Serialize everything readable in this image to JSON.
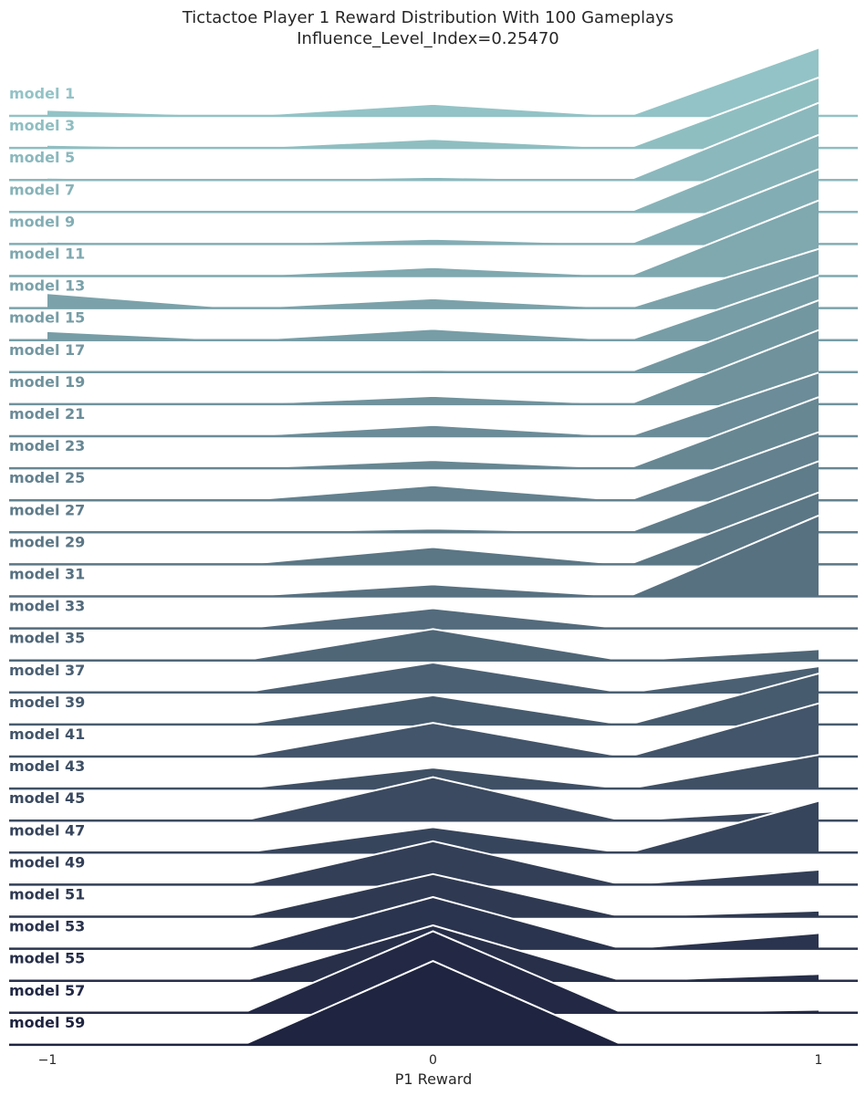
{
  "chart_data": {
    "type": "area",
    "title": "Tictactoe Player 1 Reward Distribution With 100 Gameplays",
    "subtitle": "Influence_Level_Index=0.25470",
    "xlabel": "P1 Reward",
    "x_ticks": [
      "−1",
      "0",
      "1"
    ],
    "x": [
      -1,
      0,
      1
    ],
    "xlim": [
      -1,
      1
    ],
    "series": [
      {
        "name": "model 1",
        "values": [
          8,
          16,
          91
        ]
      },
      {
        "name": "model 3",
        "values": [
          4,
          12,
          94
        ]
      },
      {
        "name": "model 5",
        "values": [
          3,
          4,
          103
        ]
      },
      {
        "name": "model 7",
        "values": [
          1,
          2,
          103
        ]
      },
      {
        "name": "model 9",
        "values": [
          3,
          7,
          100
        ]
      },
      {
        "name": "model 11",
        "values": [
          1,
          12,
          101
        ]
      },
      {
        "name": "model 13",
        "values": [
          20,
          13,
          79
        ]
      },
      {
        "name": "model 15",
        "values": [
          12,
          15,
          87
        ]
      },
      {
        "name": "model 17",
        "values": [
          1,
          3,
          96
        ]
      },
      {
        "name": "model 19",
        "values": [
          1,
          11,
          99
        ]
      },
      {
        "name": "model 21",
        "values": [
          1,
          15,
          85
        ]
      },
      {
        "name": "model 23",
        "values": [
          1,
          11,
          95
        ]
      },
      {
        "name": "model 25",
        "values": [
          1,
          20,
          91
        ]
      },
      {
        "name": "model 27",
        "values": [
          1,
          5,
          95
        ]
      },
      {
        "name": "model 29",
        "values": [
          1,
          23,
          96
        ]
      },
      {
        "name": "model 31",
        "values": [
          1,
          16,
          108
        ]
      },
      {
        "name": "model 33",
        "values": [
          1,
          27,
          0
        ]
      },
      {
        "name": "model 35",
        "values": [
          0,
          42,
          15
        ]
      },
      {
        "name": "model 37",
        "values": [
          0,
          40,
          35
        ]
      },
      {
        "name": "model 39",
        "values": [
          2,
          39,
          68
        ]
      },
      {
        "name": "model 41",
        "values": [
          1,
          45,
          71
        ]
      },
      {
        "name": "model 43",
        "values": [
          1,
          28,
          45
        ]
      },
      {
        "name": "model 45",
        "values": [
          1,
          58,
          16
        ]
      },
      {
        "name": "model 47",
        "values": [
          1,
          34,
          69
        ]
      },
      {
        "name": "model 49",
        "values": [
          1,
          58,
          20
        ]
      },
      {
        "name": "model 51",
        "values": [
          1,
          57,
          8
        ]
      },
      {
        "name": "model 53",
        "values": [
          1,
          69,
          21
        ]
      },
      {
        "name": "model 55",
        "values": [
          1,
          74,
          9
        ]
      },
      {
        "name": "model 57",
        "values": [
          1,
          109,
          4
        ]
      },
      {
        "name": "model 59",
        "values": [
          1,
          112,
          0
        ]
      }
    ],
    "grid": false,
    "legend": "left-labels",
    "palette_start": "#93c3c6",
    "palette_end": "#1f2440"
  }
}
